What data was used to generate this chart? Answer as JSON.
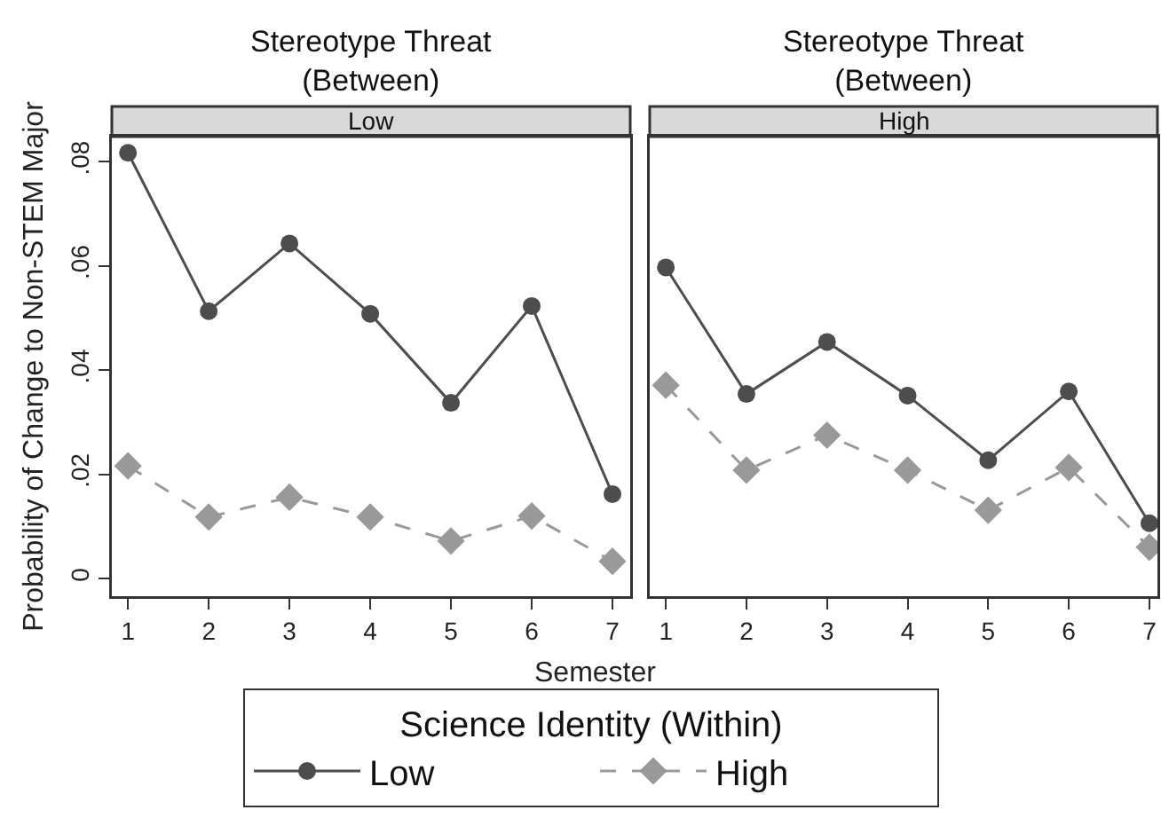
{
  "chart_data": [
    {
      "type": "line",
      "title": "Stereotype Threat\n(Between)",
      "subtitle": "Low",
      "xlabel": "Semester",
      "ylabel": "Probability of Change to Non-STEM Major",
      "legend_title": "Science Identity (Within)",
      "legend": "bottom",
      "grid": false,
      "x": [
        1,
        2,
        3,
        4,
        5,
        6,
        7
      ],
      "xlim": [
        0.8,
        7.22
      ],
      "xticks": [
        1,
        2,
        3,
        4,
        5,
        6,
        7
      ],
      "ylim": [
        -0.0034,
        0.0848
      ],
      "yticks": [
        0,
        {
          "value": 0.02,
          "label": ".02"
        },
        {
          "value": 0.04,
          "label": ".04"
        },
        {
          "value": 0.06,
          "label": ".06"
        },
        {
          "value": 0.08,
          "label": ".08"
        }
      ],
      "series": [
        {
          "name": "Low",
          "color": "#4d4d4d",
          "marker": "circle",
          "line_style": "solid",
          "values": [
            0.0817,
            0.0513,
            0.0643,
            0.0508,
            0.0337,
            0.0523,
            0.0162
          ]
        },
        {
          "name": "High",
          "color": "#999999",
          "marker": "diamond",
          "line_style": "dashed",
          "values": [
            0.0216,
            0.0118,
            0.0156,
            0.0118,
            0.0072,
            0.012,
            0.0033
          ]
        }
      ]
    },
    {
      "type": "line",
      "title": "Stereotype Threat\n(Between)",
      "subtitle": "High",
      "legend": false,
      "grid": false,
      "tick_labels": "x",
      "x": [
        1,
        2,
        3,
        4,
        5,
        6,
        7
      ],
      "xlim": [
        0.8,
        7.1
      ],
      "xticks": [
        1,
        2,
        3,
        4,
        5,
        6,
        7
      ],
      "ylim": [
        -0.0034,
        0.0848
      ],
      "series": [
        {
          "color": "#4d4d4d",
          "marker": "circle",
          "line_style": "solid",
          "values": [
            0.0597,
            0.0354,
            0.0454,
            0.0351,
            0.0227,
            0.0359,
            0.0106
          ]
        },
        {
          "color": "#999999",
          "marker": "diamond",
          "line_style": "dashed",
          "values": [
            0.0371,
            0.0208,
            0.0275,
            0.0208,
            0.0131,
            0.0213,
            0.006
          ]
        }
      ]
    }
  ]
}
